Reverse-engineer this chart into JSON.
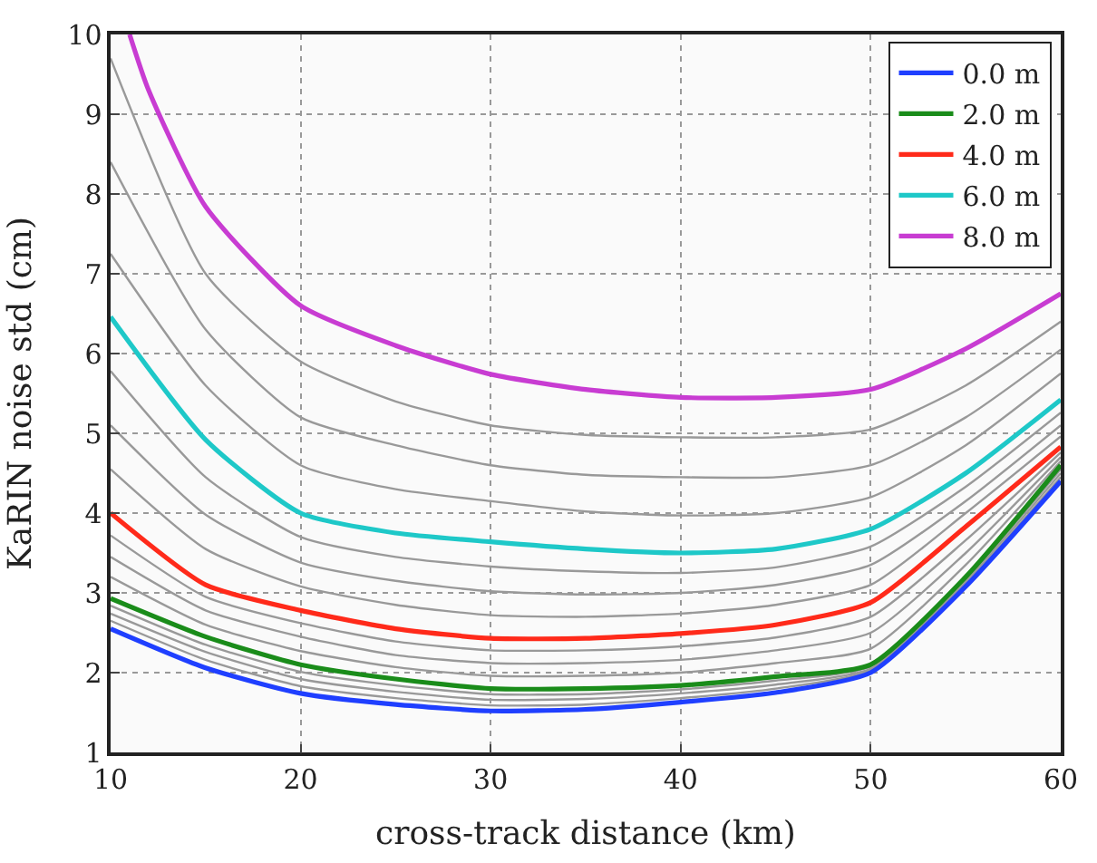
{
  "chart_data": {
    "type": "line",
    "xlabel": "cross-track distance (km)",
    "ylabel": "KaRIN noise std (cm)",
    "x": [
      10,
      15,
      20,
      25,
      30,
      35,
      40,
      45,
      50,
      55,
      60
    ],
    "xlim": [
      10,
      60
    ],
    "xticks": [
      10,
      20,
      30,
      40,
      50,
      60
    ],
    "ylim": [
      1,
      10
    ],
    "yticks": [
      1,
      2,
      3,
      4,
      5,
      6,
      7,
      8,
      9,
      10
    ],
    "grid": true,
    "legend": "top right",
    "marker": "none",
    "line_style": "solid",
    "series": [
      {
        "name": "0.0 m",
        "color": "#1f3fff",
        "values": [
          2.55,
          2.06,
          1.74,
          1.6,
          1.52,
          1.54,
          1.63,
          1.75,
          2.0,
          3.08,
          4.4
        ]
      },
      {
        "color": "#999999",
        "values": [
          2.65,
          2.16,
          1.83,
          1.68,
          1.59,
          1.6,
          1.68,
          1.8,
          2.03,
          3.11,
          4.45
        ]
      },
      {
        "color": "#999999",
        "values": [
          2.74,
          2.26,
          1.92,
          1.76,
          1.66,
          1.67,
          1.74,
          1.85,
          2.05,
          3.14,
          4.5
        ]
      },
      {
        "color": "#999999",
        "values": [
          2.84,
          2.35,
          2.01,
          1.84,
          1.73,
          1.73,
          1.79,
          1.9,
          2.08,
          3.17,
          4.55
        ]
      },
      {
        "name": "2.0 m",
        "color": "#1a8c1a",
        "values": [
          2.93,
          2.45,
          2.1,
          1.92,
          1.8,
          1.8,
          1.84,
          1.95,
          2.1,
          3.2,
          4.6
        ]
      },
      {
        "color": "#999999",
        "values": [
          3.2,
          2.6,
          2.27,
          2.07,
          1.96,
          1.96,
          2.0,
          2.12,
          2.3,
          3.35,
          4.65
        ]
      },
      {
        "color": "#999999",
        "values": [
          3.45,
          2.78,
          2.45,
          2.22,
          2.12,
          2.12,
          2.16,
          2.28,
          2.5,
          3.5,
          4.7
        ]
      },
      {
        "color": "#999999",
        "values": [
          3.72,
          2.95,
          2.62,
          2.39,
          2.28,
          2.28,
          2.33,
          2.44,
          2.7,
          3.66,
          4.76
        ]
      },
      {
        "name": "4.0 m",
        "color": "#ff2a1a",
        "values": [
          4.0,
          3.1,
          2.78,
          2.55,
          2.43,
          2.43,
          2.49,
          2.6,
          2.88,
          3.83,
          4.83
        ]
      },
      {
        "color": "#999999",
        "values": [
          4.55,
          3.55,
          3.08,
          2.85,
          2.72,
          2.7,
          2.74,
          2.85,
          3.1,
          4.0,
          4.96
        ]
      },
      {
        "color": "#999999",
        "values": [
          5.1,
          3.98,
          3.38,
          3.15,
          3.02,
          2.98,
          3.0,
          3.1,
          3.35,
          4.15,
          5.1
        ]
      },
      {
        "color": "#999999",
        "values": [
          5.78,
          4.45,
          3.7,
          3.45,
          3.33,
          3.27,
          3.25,
          3.32,
          3.58,
          4.33,
          5.26
        ]
      },
      {
        "name": "6.0 m",
        "color": "#1ec8c8",
        "values": [
          6.46,
          4.92,
          4.0,
          3.75,
          3.64,
          3.55,
          3.5,
          3.55,
          3.8,
          4.5,
          5.42
        ]
      },
      {
        "color": "#999999",
        "values": [
          7.25,
          5.6,
          4.6,
          4.3,
          4.15,
          4.02,
          3.97,
          4.0,
          4.2,
          4.85,
          5.75
        ]
      },
      {
        "color": "#999999",
        "values": [
          8.4,
          6.3,
          5.2,
          4.85,
          4.6,
          4.48,
          4.45,
          4.45,
          4.6,
          5.2,
          6.05
        ]
      },
      {
        "color": "#999999",
        "values": [
          9.7,
          7.0,
          5.9,
          5.4,
          5.1,
          4.98,
          4.95,
          4.95,
          5.05,
          5.6,
          6.4
        ]
      },
      {
        "name": "8.0 m",
        "color": "#c83cd2",
        "x": [
          11,
          12,
          15,
          20,
          25,
          30,
          35,
          40,
          45,
          50,
          55,
          60
        ],
        "values": [
          10,
          9.3,
          7.84,
          6.6,
          6.1,
          5.74,
          5.55,
          5.45,
          5.45,
          5.55,
          6.06,
          6.75
        ]
      }
    ]
  }
}
